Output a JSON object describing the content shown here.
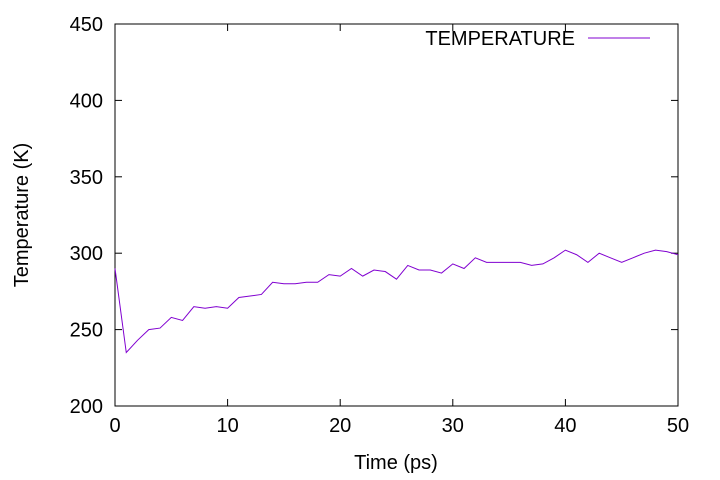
{
  "chart_data": {
    "type": "line",
    "xlabel": "Time (ps)",
    "ylabel": "Temperature (K)",
    "xlim": [
      0,
      50
    ],
    "ylim": [
      200,
      450
    ],
    "x_ticks": [
      0,
      10,
      20,
      30,
      40,
      50
    ],
    "y_ticks": [
      200,
      250,
      300,
      350,
      400,
      450
    ],
    "grid": false,
    "legend_position": "top-right",
    "series": [
      {
        "name": "TEMPERATURE",
        "color": "#8000d0",
        "x": [
          0,
          1,
          2,
          3,
          4,
          5,
          6,
          7,
          8,
          9,
          10,
          11,
          12,
          13,
          14,
          15,
          16,
          17,
          18,
          19,
          20,
          21,
          22,
          23,
          24,
          25,
          26,
          27,
          28,
          29,
          30,
          31,
          32,
          33,
          34,
          35,
          36,
          37,
          38,
          39,
          40,
          41,
          42,
          43,
          44,
          45,
          46,
          47,
          48,
          49,
          50
        ],
        "y": [
          290,
          235,
          243,
          250,
          251,
          258,
          256,
          265,
          264,
          265,
          264,
          271,
          272,
          273,
          281,
          280,
          280,
          281,
          281,
          286,
          285,
          290,
          285,
          289,
          288,
          283,
          292,
          289,
          289,
          287,
          293,
          290,
          297,
          294,
          294,
          294,
          294,
          292,
          293,
          297,
          302,
          299,
          294,
          300,
          297,
          294,
          297,
          300,
          302,
          301,
          299
        ]
      }
    ]
  }
}
